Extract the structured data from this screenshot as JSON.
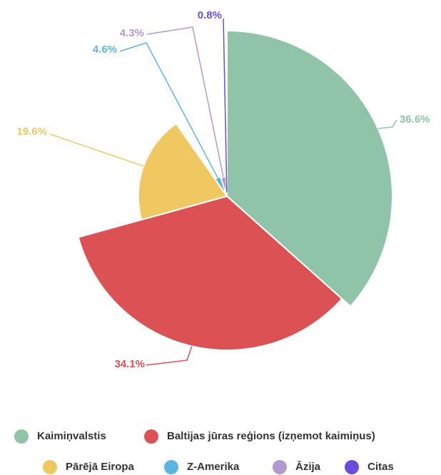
{
  "chart_data": {
    "type": "pie",
    "categories": [
      "Kaimiņvalstis",
      "Baltijas jūras reģions (izņemot kaimiņus)",
      "Pārējā Eiropa",
      "Z-Amerika",
      "Āzija",
      "Citas"
    ],
    "values": [
      36.6,
      34.1,
      19.6,
      4.6,
      4.3,
      0.8
    ],
    "value_labels": [
      "36.6%",
      "34.1%",
      "19.6%",
      "4.6%",
      "4.3%",
      "0.8%"
    ],
    "colors": [
      "#8fc4a8",
      "#dc5153",
      "#f0c862",
      "#5ab4e0",
      "#b09ad0",
      "#6a4de0"
    ]
  }
}
